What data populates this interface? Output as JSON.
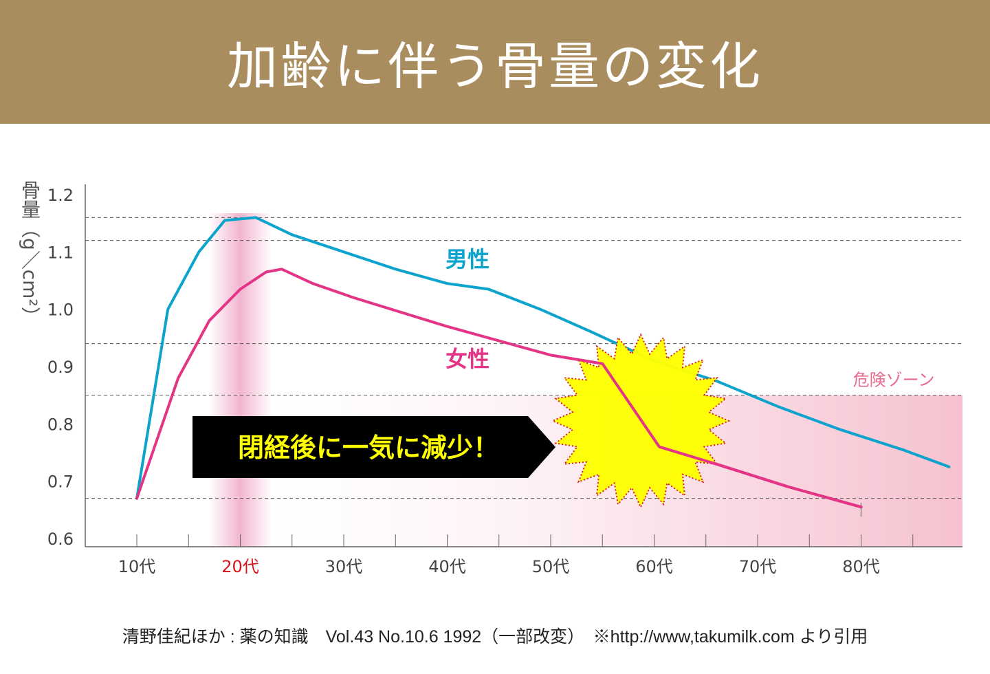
{
  "title": "加齢に伴う骨量の変化",
  "source": "清野佳紀ほか : 薬の知識　Vol.43 No.10.6 1992（一部改変）　※http://www,takumilk.com より引用",
  "chart_data": {
    "type": "line",
    "ylabel": "骨量（g／cm²）",
    "xlabel": "",
    "categories": [
      "10代",
      "20代",
      "30代",
      "40代",
      "50代",
      "60代",
      "70代",
      "80代"
    ],
    "highlight_category": "20代",
    "ylim": [
      0.6,
      1.2
    ],
    "yticks": [
      "1.2",
      "1.1",
      "1.0",
      "0.9",
      "0.8",
      "0.7",
      "0.6"
    ],
    "grid_y": [
      1.16,
      1.12,
      0.94,
      0.85,
      0.67
    ],
    "series": [
      {
        "name": "男性",
        "color": "#0ca3cc",
        "points": [
          [
            10,
            0.67
          ],
          [
            13,
            1.0
          ],
          [
            16,
            1.1
          ],
          [
            18.5,
            1.155
          ],
          [
            21.5,
            1.16
          ],
          [
            25,
            1.13
          ],
          [
            30,
            1.1
          ],
          [
            35,
            1.07
          ],
          [
            40,
            1.045
          ],
          [
            44,
            1.035
          ],
          [
            49,
            1.0
          ],
          [
            54,
            0.96
          ],
          [
            60,
            0.91
          ],
          [
            66,
            0.875
          ],
          [
            72,
            0.83
          ],
          [
            78,
            0.79
          ],
          [
            84,
            0.755
          ],
          [
            88.5,
            0.725
          ]
        ]
      },
      {
        "name": "女性",
        "color": "#e33485",
        "points": [
          [
            10,
            0.67
          ],
          [
            14,
            0.88
          ],
          [
            17,
            0.98
          ],
          [
            20,
            1.035
          ],
          [
            22.5,
            1.065
          ],
          [
            24,
            1.07
          ],
          [
            27,
            1.045
          ],
          [
            31,
            1.02
          ],
          [
            40,
            0.97
          ],
          [
            50,
            0.92
          ],
          [
            55,
            0.905
          ],
          [
            60.5,
            0.76
          ],
          [
            66,
            0.73
          ],
          [
            73,
            0.69
          ],
          [
            80,
            0.655
          ]
        ]
      }
    ],
    "danger_zone": {
      "label": "危険ゾーン",
      "ymax": 0.85,
      "color": "#ef98b0"
    },
    "callout": "閉経後に一気に減少！",
    "burst_color": "#ffff00"
  }
}
